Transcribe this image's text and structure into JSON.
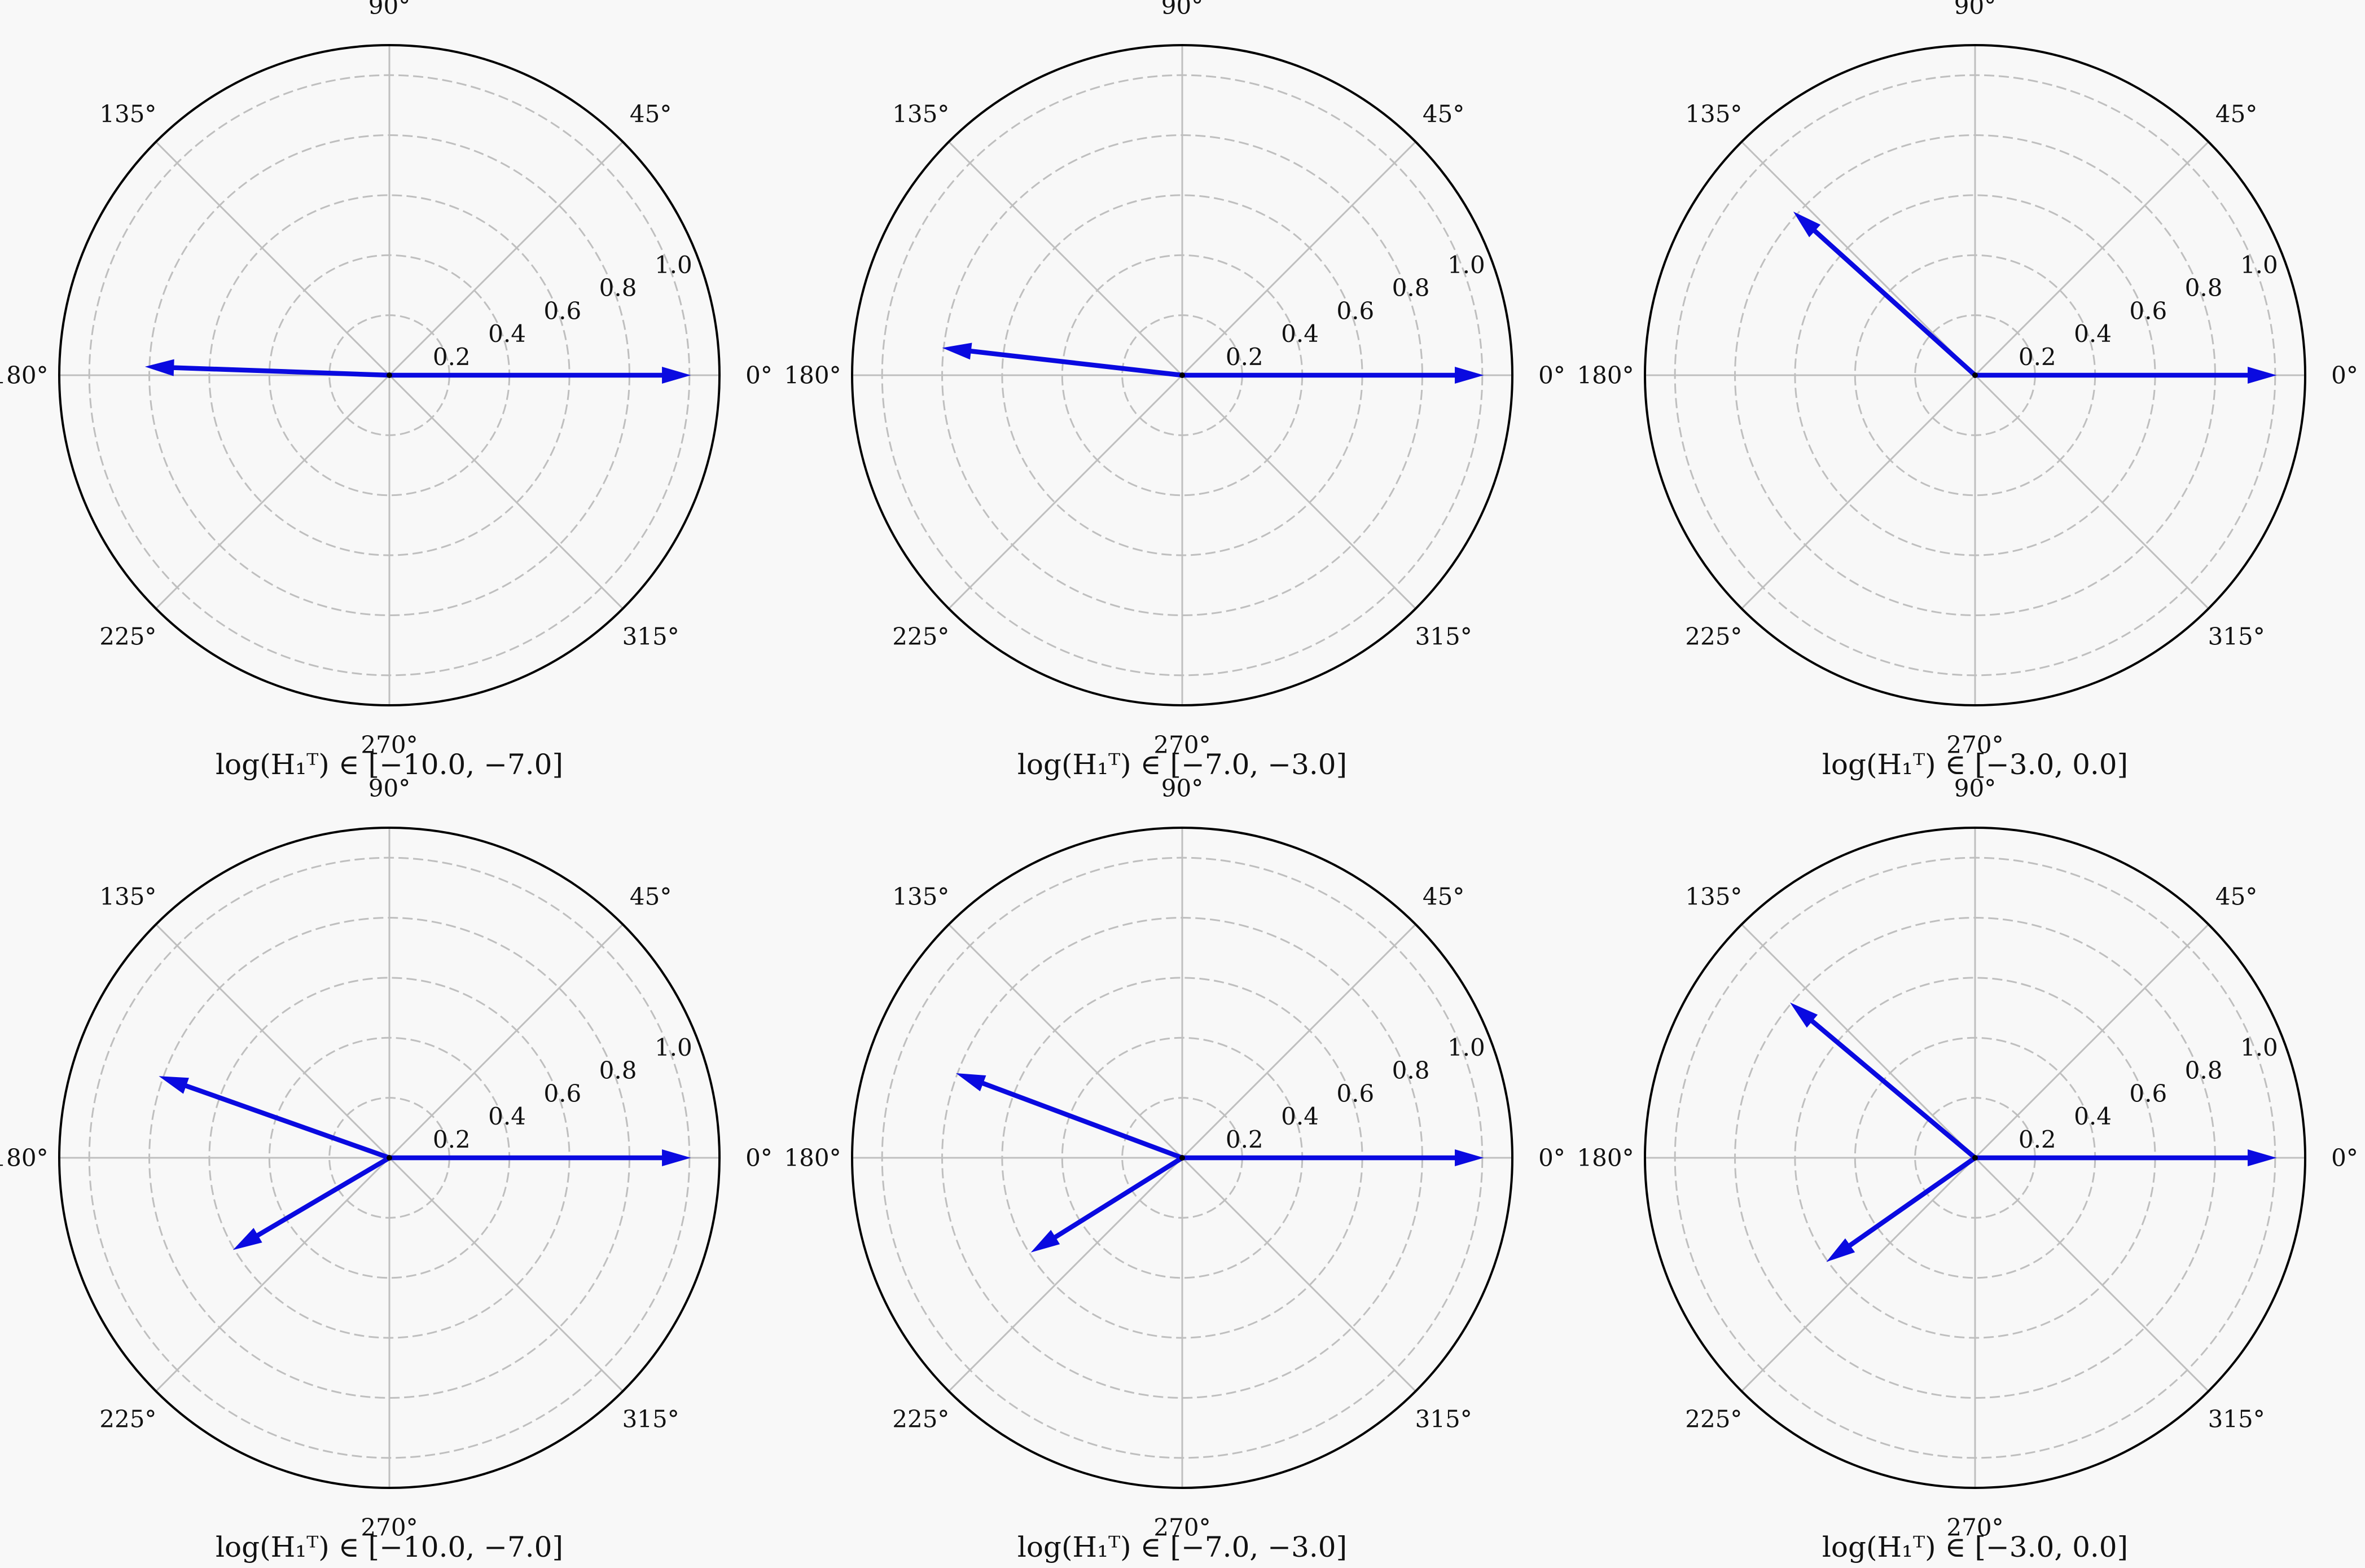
{
  "figure": {
    "background": "#f8f8f8",
    "arrow_color": "#0a0ae0",
    "grid_color": "#bfbfbf",
    "frame_color": "#000000"
  },
  "chart_data": [
    {
      "type": "polar",
      "xlabel": "log(H₁ᵀ) ∈ [−10.0, −7.0]",
      "angle_ticks": [
        "0°",
        "45°",
        "90°",
        "135°",
        "180°",
        "225°",
        "270°",
        "315°"
      ],
      "radial_ticks": [
        "0.2",
        "0.4",
        "0.6",
        "0.8",
        "1.0"
      ],
      "rlim": [
        0,
        1.1
      ],
      "grid": true,
      "arrows": [
        {
          "angle_deg": 0.0,
          "length": 1.0
        },
        {
          "angle_deg": 178.0,
          "length": 0.81
        }
      ]
    },
    {
      "type": "polar",
      "xlabel": "log(H₁ᵀ) ∈ [−7.0, −3.0]",
      "angle_ticks": [
        "0°",
        "45°",
        "90°",
        "135°",
        "180°",
        "225°",
        "270°",
        "315°"
      ],
      "radial_ticks": [
        "0.2",
        "0.4",
        "0.6",
        "0.8",
        "1.0"
      ],
      "rlim": [
        0,
        1.1
      ],
      "grid": true,
      "arrows": [
        {
          "angle_deg": 0.0,
          "length": 1.0
        },
        {
          "angle_deg": 173.5,
          "length": 0.8
        }
      ]
    },
    {
      "type": "polar",
      "xlabel": "log(H₁ᵀ) ∈ [−3.0, 0.0]",
      "angle_ticks": [
        "0°",
        "45°",
        "90°",
        "135°",
        "180°",
        "225°",
        "270°",
        "315°"
      ],
      "radial_ticks": [
        "0.2",
        "0.4",
        "0.6",
        "0.8",
        "1.0"
      ],
      "rlim": [
        0,
        1.1
      ],
      "grid": true,
      "arrows": [
        {
          "angle_deg": 0.0,
          "length": 1.0
        },
        {
          "angle_deg": 138.0,
          "length": 0.81
        }
      ]
    },
    {
      "type": "polar",
      "xlabel": "log(H₁ᵀ) ∈ [−10.0, −7.0]",
      "angle_ticks": [
        "0°",
        "45°",
        "90°",
        "135°",
        "180°",
        "225°",
        "270°",
        "315°"
      ],
      "radial_ticks": [
        "0.2",
        "0.4",
        "0.6",
        "0.8",
        "1.0"
      ],
      "rlim": [
        0,
        1.1
      ],
      "grid": true,
      "arrows": [
        {
          "angle_deg": 0.0,
          "length": 1.0
        },
        {
          "angle_deg": 160.5,
          "length": 0.81
        },
        {
          "angle_deg": 210.5,
          "length": 0.6
        }
      ]
    },
    {
      "type": "polar",
      "xlabel": "log(H₁ᵀ) ∈ [−7.0, −3.0]",
      "angle_ticks": [
        "0°",
        "45°",
        "90°",
        "135°",
        "180°",
        "225°",
        "270°",
        "315°"
      ],
      "radial_ticks": [
        "0.2",
        "0.4",
        "0.6",
        "0.8",
        "1.0"
      ],
      "rlim": [
        0,
        1.1
      ],
      "grid": true,
      "arrows": [
        {
          "angle_deg": 0.0,
          "length": 1.0
        },
        {
          "angle_deg": 159.5,
          "length": 0.8
        },
        {
          "angle_deg": 212.0,
          "length": 0.59
        }
      ]
    },
    {
      "type": "polar",
      "xlabel": "log(H₁ᵀ) ∈ [−3.0, 0.0]",
      "angle_ticks": [
        "0°",
        "45°",
        "90°",
        "135°",
        "180°",
        "225°",
        "270°",
        "315°"
      ],
      "radial_ticks": [
        "0.2",
        "0.4",
        "0.6",
        "0.8",
        "1.0"
      ],
      "rlim": [
        0,
        1.1
      ],
      "grid": true,
      "arrows": [
        {
          "angle_deg": 0.0,
          "length": 1.0
        },
        {
          "angle_deg": 140.0,
          "length": 0.8
        },
        {
          "angle_deg": 215.0,
          "length": 0.6
        }
      ]
    }
  ]
}
